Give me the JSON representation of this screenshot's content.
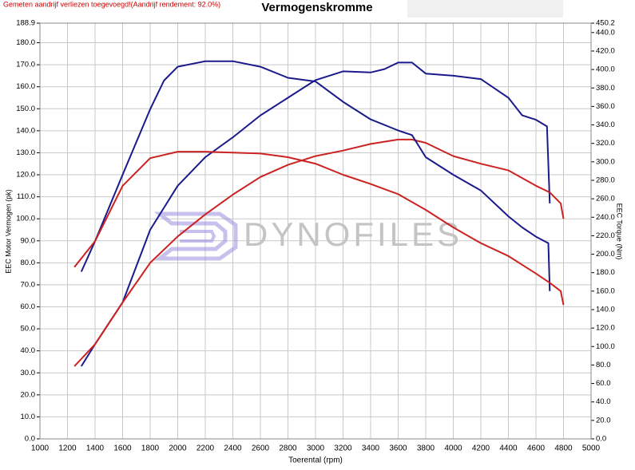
{
  "chart_data": {
    "type": "line",
    "title": "Vermogenskromme",
    "notice": "Gemeten aandrijf verliezen toegevoegd!(Aandrijf rendement: 92.0%)",
    "watermark": "DYNOFILES",
    "xlabel": "Toerental (rpm)",
    "ylabel": "EEC Motor Vermogen (pk)",
    "y2label": "EEC Torque (Nm)",
    "grid": true,
    "xlim": [
      1000,
      5000
    ],
    "xticks": [
      1000,
      1200,
      1400,
      1600,
      1800,
      2000,
      2200,
      2400,
      2600,
      2800,
      3000,
      3200,
      3400,
      3600,
      3800,
      4000,
      4200,
      4400,
      4600,
      4800,
      5000
    ],
    "ylim": [
      0,
      188.9
    ],
    "yticks": [
      {
        "value": 0,
        "label": "0.0"
      },
      {
        "value": 10,
        "label": "10.0"
      },
      {
        "value": 20,
        "label": "20.0"
      },
      {
        "value": 30,
        "label": "30.0"
      },
      {
        "value": 40,
        "label": "40.0"
      },
      {
        "value": 50,
        "label": "50.0"
      },
      {
        "value": 60,
        "label": "60.0"
      },
      {
        "value": 70,
        "label": "70.0"
      },
      {
        "value": 80,
        "label": "80.0"
      },
      {
        "value": 90,
        "label": "90.0"
      },
      {
        "value": 100,
        "label": "100.0"
      },
      {
        "value": 110,
        "label": "110.0"
      },
      {
        "value": 120,
        "label": "120.0"
      },
      {
        "value": 130,
        "label": "130.0"
      },
      {
        "value": 140,
        "label": "140.0"
      },
      {
        "value": 150,
        "label": "150.0"
      },
      {
        "value": 160,
        "label": "160.0"
      },
      {
        "value": 170,
        "label": "170.0"
      },
      {
        "value": 180,
        "label": "180.0"
      },
      188.9
    ],
    "y2lim": [
      0,
      450.2
    ],
    "y2ticks": [
      {
        "value": 0,
        "label": "0.0"
      },
      {
        "value": 20,
        "label": "20.0"
      },
      {
        "value": 40,
        "label": "40.0"
      },
      {
        "value": 60,
        "label": "60.0"
      },
      {
        "value": 80,
        "label": "80.0"
      },
      {
        "value": 100,
        "label": "100.0"
      },
      {
        "value": 120,
        "label": "120.0"
      },
      {
        "value": 140,
        "label": "140.0"
      },
      {
        "value": 160,
        "label": "160.0"
      },
      {
        "value": 180,
        "label": "180.0"
      },
      {
        "value": 200,
        "label": "200.0"
      },
      {
        "value": 220,
        "label": "220.0"
      },
      {
        "value": 240,
        "label": "240.0"
      },
      {
        "value": 260,
        "label": "260.0"
      },
      {
        "value": 280,
        "label": "280.0"
      },
      {
        "value": 300,
        "label": "300.0"
      },
      {
        "value": 320,
        "label": "320.0"
      },
      {
        "value": 340,
        "label": "340.0"
      },
      {
        "value": 360,
        "label": "360.0"
      },
      {
        "value": 380,
        "label": "380.0"
      },
      {
        "value": 400,
        "label": "400.0"
      },
      {
        "value": 420,
        "label": "420.0"
      },
      {
        "value": 440,
        "label": "440.0"
      },
      450.2
    ],
    "series": [
      {
        "color": "#1a1a8c",
        "axis": "y",
        "x": [
          1300,
          1400,
          1600,
          1800,
          2000,
          2200,
          2400,
          2600,
          2800,
          3000,
          3200,
          3400,
          3500,
          3600,
          3700,
          3800,
          4000,
          4200,
          4400,
          4500,
          4600,
          4680,
          4700
        ],
        "values": [
          33,
          43,
          62,
          95,
          115,
          128,
          137,
          147,
          155,
          163,
          167,
          166.5,
          168,
          171,
          171,
          166,
          165,
          163.5,
          155,
          147,
          145,
          142,
          107
        ]
      },
      {
        "color": "#cc2222",
        "axis": "y",
        "x": [
          1250,
          1400,
          1600,
          1800,
          2000,
          2200,
          2400,
          2600,
          2800,
          3000,
          3200,
          3400,
          3600,
          3700,
          3800,
          4000,
          4200,
          4400,
          4600,
          4700,
          4780,
          4800
        ],
        "values": [
          33,
          43,
          62,
          80,
          92,
          102,
          111,
          119,
          124.5,
          128.5,
          131,
          134,
          136,
          136,
          134.5,
          128.5,
          125,
          122,
          115,
          112,
          107,
          100
        ]
      },
      {
        "color": "#1a1a8c",
        "axis": "y2",
        "x": [
          1300,
          1400,
          1600,
          1800,
          1900,
          2000,
          2200,
          2400,
          2600,
          2800,
          3000,
          3200,
          3400,
          3600,
          3700,
          3800,
          4000,
          4200,
          4400,
          4500,
          4600,
          4690,
          4700
        ],
        "values": [
          181,
          214,
          286,
          357,
          388,
          403,
          409,
          409,
          403,
          391,
          387,
          365,
          346,
          334,
          329,
          305,
          286,
          269,
          241,
          229,
          219,
          212,
          160
        ]
      },
      {
        "color": "#cc2222",
        "axis": "y2",
        "x": [
          1250,
          1400,
          1600,
          1800,
          2000,
          2200,
          2400,
          2600,
          2800,
          3000,
          3200,
          3400,
          3600,
          3800,
          4000,
          4200,
          4400,
          4600,
          4700,
          4780,
          4800
        ],
        "values": [
          186,
          214,
          274,
          304,
          311,
          311,
          310,
          309,
          305,
          298,
          286,
          276,
          265,
          248,
          229,
          212,
          198,
          179,
          169,
          160,
          145
        ]
      }
    ]
  }
}
